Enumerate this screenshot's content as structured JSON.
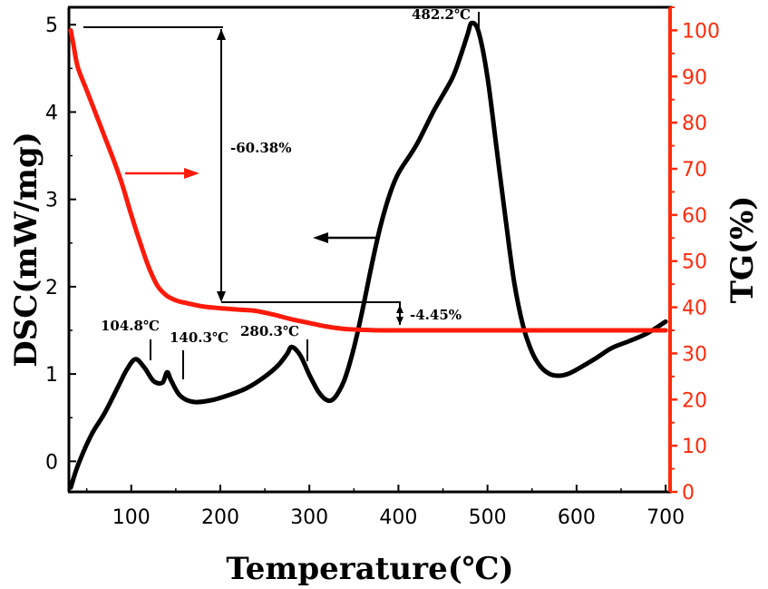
{
  "chart_data": {
    "type": "line",
    "title": "",
    "xlabel": "Temperature(℃)",
    "ylabel_left": "DSC(mW/mg)",
    "ylabel_right": "TG(%)",
    "xlim": [
      30,
      705
    ],
    "ylim_left": [
      -0.35,
      5.2
    ],
    "ylim_right": [
      0,
      105
    ],
    "x_ticks": [
      100,
      200,
      300,
      400,
      500,
      600,
      700
    ],
    "y_left_ticks": [
      0,
      1,
      2,
      3,
      4,
      5
    ],
    "y_right_ticks": [
      0,
      10,
      20,
      30,
      40,
      50,
      60,
      70,
      80,
      90,
      100
    ],
    "colors": {
      "dsc": "#000000",
      "tg": "#ff1a0a",
      "right_axis": "#ff2a0a"
    },
    "series": [
      {
        "name": "DSC",
        "axis": "left",
        "x": [
          32,
          40,
          55,
          70,
          85,
          95,
          104.8,
          115,
          125,
          135,
          140.3,
          145,
          155,
          170,
          190,
          210,
          230,
          250,
          265,
          275,
          280.3,
          290,
          300,
          310,
          318,
          325,
          332,
          340,
          350,
          360,
          370,
          380,
          390,
          400,
          420,
          440,
          460,
          470,
          478,
          482.2,
          490,
          500,
          510,
          520,
          530,
          540,
          550,
          560,
          570,
          580,
          590,
          600,
          620,
          640,
          660,
          680,
          700
        ],
        "values": [
          -0.3,
          -0.05,
          0.3,
          0.55,
          0.85,
          1.05,
          1.17,
          1.07,
          0.92,
          0.9,
          1.02,
          0.92,
          0.75,
          0.68,
          0.7,
          0.76,
          0.84,
          0.97,
          1.1,
          1.23,
          1.31,
          1.21,
          0.99,
          0.8,
          0.71,
          0.7,
          0.78,
          0.95,
          1.3,
          1.75,
          2.25,
          2.7,
          3.05,
          3.3,
          3.62,
          4.02,
          4.38,
          4.65,
          4.9,
          5.02,
          4.92,
          4.4,
          3.6,
          2.8,
          2.05,
          1.55,
          1.25,
          1.08,
          1.0,
          0.98,
          1.0,
          1.05,
          1.17,
          1.3,
          1.38,
          1.47,
          1.6
        ]
      },
      {
        "name": "TG",
        "axis": "right",
        "x": [
          32,
          35,
          40,
          50,
          60,
          70,
          80,
          90,
          100,
          110,
          120,
          130,
          140,
          150,
          160,
          180,
          200,
          220,
          240,
          260,
          280,
          300,
          320,
          340,
          360,
          380,
          400,
          500,
          600,
          700
        ],
        "values": [
          100,
          97,
          92,
          87,
          82,
          77,
          72,
          66.5,
          60,
          54,
          48.5,
          44.5,
          42.5,
          41.5,
          41,
          40.2,
          39.8,
          39.5,
          39.2,
          38.4,
          37.4,
          36.6,
          35.8,
          35.3,
          35.1,
          35.0,
          35.0,
          35.0,
          35.0,
          35.0
        ]
      }
    ],
    "annotations": {
      "peaks": [
        "104.8℃",
        "140.3℃",
        "280.3℃",
        "482.2℃"
      ],
      "mass_loss_1": "-60.38%",
      "mass_loss_2": "-4.45%"
    }
  }
}
